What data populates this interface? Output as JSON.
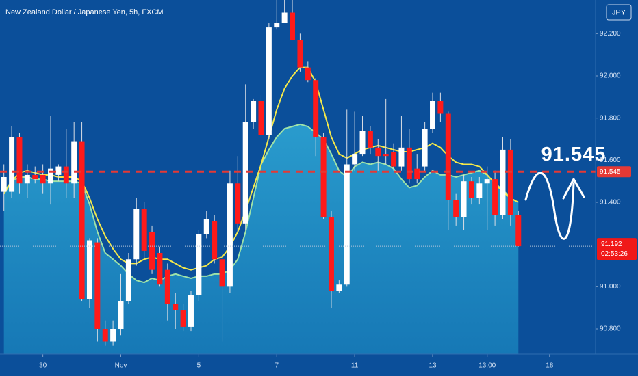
{
  "chart_data": {
    "type": "candlestick",
    "title": "New Zealand Dollar / Japanese Yen, 5h, FXCM",
    "currency_button": "JPY",
    "up_color": "#ffffff",
    "down_color": "#ff1a1a",
    "open": [
      91.45,
      91.45,
      91.71,
      91.49,
      91.53,
      91.53,
      91.49,
      91.53,
      91.57,
      91.49,
      91.69,
      90.94,
      91.21,
      90.8,
      90.74,
      90.8,
      90.93,
      91.13,
      91.37,
      91.26,
      91.16,
      91.08,
      90.92,
      90.89,
      90.81,
      90.96,
      91.25,
      91.31,
      91.13,
      91.0,
      91.49,
      91.3,
      91.78,
      91.88,
      91.72,
      92.23,
      92.25,
      92.3,
      92.17,
      92.04,
      91.98,
      91.71,
      91.33,
      90.98,
      91.01,
      91.58,
      91.63,
      91.74,
      91.66,
      91.63,
      91.64,
      91.57,
      91.66,
      91.56,
      91.57,
      91.75,
      91.88,
      91.82,
      91.41,
      91.33,
      91.5,
      91.42,
      91.49,
      91.51,
      91.34,
      91.65,
      91.34
    ],
    "high": [
      91.58,
      91.76,
      91.73,
      91.58,
      91.57,
      91.58,
      91.81,
      91.58,
      91.75,
      91.78,
      91.78,
      91.23,
      91.23,
      90.84,
      90.84,
      91.06,
      91.16,
      91.42,
      91.4,
      91.29,
      91.19,
      91.11,
      90.97,
      90.92,
      90.98,
      91.27,
      91.36,
      91.34,
      91.16,
      91.55,
      91.62,
      91.96,
      91.89,
      91.91,
      92.25,
      92.36,
      92.36,
      92.36,
      92.2,
      92.07,
      91.99,
      91.73,
      91.36,
      91.03,
      91.84,
      91.83,
      91.81,
      91.76,
      91.7,
      91.89,
      91.68,
      91.81,
      91.75,
      91.63,
      91.78,
      91.92,
      91.92,
      91.83,
      91.44,
      91.53,
      91.52,
      91.52,
      91.57,
      91.55,
      91.71,
      91.7,
      91.36
    ],
    "low": [
      91.36,
      91.42,
      91.44,
      91.42,
      91.49,
      91.44,
      91.39,
      91.5,
      91.42,
      91.42,
      90.93,
      90.9,
      90.74,
      90.72,
      90.72,
      90.77,
      90.92,
      91.1,
      91.13,
      91.06,
      91.0,
      90.84,
      90.8,
      90.79,
      90.79,
      90.93,
      91.23,
      91.11,
      90.74,
      90.97,
      91.26,
      91.27,
      91.75,
      91.71,
      91.7,
      92.22,
      92.25,
      92.17,
      92.02,
      91.97,
      91.62,
      91.32,
      90.9,
      90.97,
      91.0,
      91.55,
      91.62,
      91.63,
      91.55,
      91.58,
      91.55,
      91.55,
      91.49,
      91.49,
      91.55,
      91.73,
      91.78,
      91.27,
      91.29,
      91.27,
      91.39,
      91.39,
      91.27,
      91.29,
      91.32,
      91.29,
      91.19
    ],
    "close": [
      91.52,
      91.71,
      91.49,
      91.53,
      91.51,
      91.49,
      91.56,
      91.57,
      91.49,
      91.69,
      90.94,
      91.22,
      90.8,
      90.74,
      90.8,
      90.93,
      91.13,
      91.37,
      91.17,
      91.08,
      91.01,
      90.92,
      90.89,
      90.81,
      90.96,
      91.25,
      91.32,
      91.13,
      91.0,
      91.49,
      91.3,
      91.78,
      91.88,
      91.72,
      92.23,
      92.25,
      92.3,
      92.17,
      92.04,
      91.98,
      91.71,
      91.33,
      90.98,
      91.01,
      91.58,
      91.63,
      91.74,
      91.66,
      91.62,
      91.62,
      91.57,
      91.66,
      91.51,
      91.51,
      91.75,
      91.88,
      91.82,
      91.41,
      91.33,
      91.5,
      91.42,
      91.49,
      91.51,
      91.34,
      91.65,
      91.34,
      91.192
    ],
    "overlays": [
      {
        "color": "#9fe3a8",
        "fill": true,
        "values": [
          91.45,
          91.5,
          91.52,
          91.52,
          91.51,
          91.51,
          91.5,
          91.5,
          91.5,
          91.5,
          91.49,
          91.39,
          91.26,
          91.16,
          91.13,
          91.1,
          91.06,
          91.03,
          91.02,
          91.04,
          91.03,
          91.05,
          91.06,
          91.05,
          91.04,
          91.05,
          91.05,
          91.06,
          91.06,
          91.08,
          91.13,
          91.26,
          91.42,
          91.58,
          91.65,
          91.71,
          91.75,
          91.76,
          91.77,
          91.76,
          91.73,
          91.7,
          91.63,
          91.55,
          91.52,
          91.57,
          91.59,
          91.58,
          91.59,
          91.58,
          91.56,
          91.51,
          91.47,
          91.48,
          91.52,
          91.55,
          91.53,
          91.53,
          91.52,
          91.53,
          91.54,
          91.55,
          91.53,
          91.49,
          91.46,
          91.42,
          91.4
        ]
      },
      {
        "color": "#f5e94a",
        "fill": false,
        "values": [
          91.44,
          91.5,
          91.54,
          91.55,
          91.54,
          91.53,
          91.53,
          91.52,
          91.52,
          91.52,
          91.5,
          91.42,
          91.32,
          91.24,
          91.18,
          91.13,
          91.11,
          91.11,
          91.13,
          91.14,
          91.13,
          91.13,
          91.11,
          91.09,
          91.08,
          91.09,
          91.1,
          91.13,
          91.14,
          91.19,
          91.26,
          91.36,
          91.47,
          91.58,
          91.71,
          91.84,
          91.94,
          92.0,
          92.04,
          92.04,
          91.97,
          91.84,
          91.71,
          91.63,
          91.61,
          91.63,
          91.65,
          91.66,
          91.67,
          91.66,
          91.65,
          91.64,
          91.64,
          91.65,
          91.66,
          91.68,
          91.66,
          91.62,
          91.59,
          91.58,
          91.58,
          91.57,
          91.53,
          91.49,
          91.45,
          91.42,
          91.4
        ]
      }
    ],
    "level": 91.545,
    "level_color": "#e53935",
    "last_price": 91.192,
    "countdown": "02:53:26",
    "ylim": [
      90.68,
      92.36
    ],
    "yticks": [
      {
        "value": 92.2,
        "label": "92.200"
      },
      {
        "value": 92.0,
        "label": "92.000"
      },
      {
        "value": 91.8,
        "label": "91.800"
      },
      {
        "value": 91.6,
        "label": "91.600"
      },
      {
        "value": 91.4,
        "label": "91.400"
      },
      {
        "value": 91.0,
        "label": "91.000"
      },
      {
        "value": 90.8,
        "label": "90.800"
      }
    ],
    "xlim": [
      -0.5,
      75.9
    ],
    "xticks": [
      {
        "value": 5,
        "label": "30"
      },
      {
        "value": 15,
        "label": "Nov"
      },
      {
        "value": 25,
        "label": "5"
      },
      {
        "value": 35,
        "label": "7"
      },
      {
        "value": 45,
        "label": "11"
      },
      {
        "value": 55,
        "label": "13"
      },
      {
        "value": 62,
        "label": "13:00"
      },
      {
        "value": 70,
        "label": "18"
      }
    ]
  }
}
